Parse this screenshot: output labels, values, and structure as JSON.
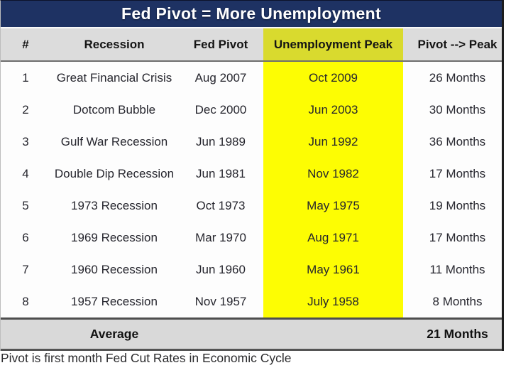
{
  "chart_data": {
    "type": "table",
    "title": "Fed Pivot = More Unemployment",
    "columns": [
      "#",
      "Recession",
      "Fed Pivot",
      "Unemployment Peak",
      "Pivot --> Peak"
    ],
    "highlighted_column": "Unemployment Peak",
    "rows": [
      {
        "num": "1",
        "recession": "Great Financial Crisis",
        "fed_pivot": "Aug 2007",
        "unemployment_peak": "Oct 2009",
        "pivot_to_peak": "26 Months"
      },
      {
        "num": "2",
        "recession": "Dotcom Bubble",
        "fed_pivot": "Dec 2000",
        "unemployment_peak": "Jun 2003",
        "pivot_to_peak": "30 Months"
      },
      {
        "num": "3",
        "recession": "Gulf War Recession",
        "fed_pivot": "Jun 1989",
        "unemployment_peak": "Jun 1992",
        "pivot_to_peak": "36 Months"
      },
      {
        "num": "4",
        "recession": "Double Dip Recession",
        "fed_pivot": "Jun 1981",
        "unemployment_peak": "Nov 1982",
        "pivot_to_peak": "17 Months"
      },
      {
        "num": "5",
        "recession": "1973 Recession",
        "fed_pivot": "Oct 1973",
        "unemployment_peak": "May 1975",
        "pivot_to_peak": "19 Months"
      },
      {
        "num": "6",
        "recession": "1969 Recession",
        "fed_pivot": "Mar 1970",
        "unemployment_peak": "Aug 1971",
        "pivot_to_peak": "17 Months"
      },
      {
        "num": "7",
        "recession": "1960 Recession",
        "fed_pivot": "Jun 1960",
        "unemployment_peak": "May 1961",
        "pivot_to_peak": "11 Months"
      },
      {
        "num": "8",
        "recession": "1957 Recession",
        "fed_pivot": "Nov 1957",
        "unemployment_peak": "July 1958",
        "pivot_to_peak": "8 Months"
      }
    ],
    "summary": {
      "label": "Average",
      "value": "21 Months"
    },
    "footnote": "Pivot is first month Fed Cut Rates in Economic Cycle"
  },
  "colors": {
    "title_bg": "#1e3263",
    "title_text": "#ffffff",
    "header_bg": "#dcdcdc",
    "header_highlight": "#d9da2e",
    "row_highlight": "#fdfd03",
    "summary_bg": "#d9d9d9",
    "body_text": "#26262e"
  }
}
